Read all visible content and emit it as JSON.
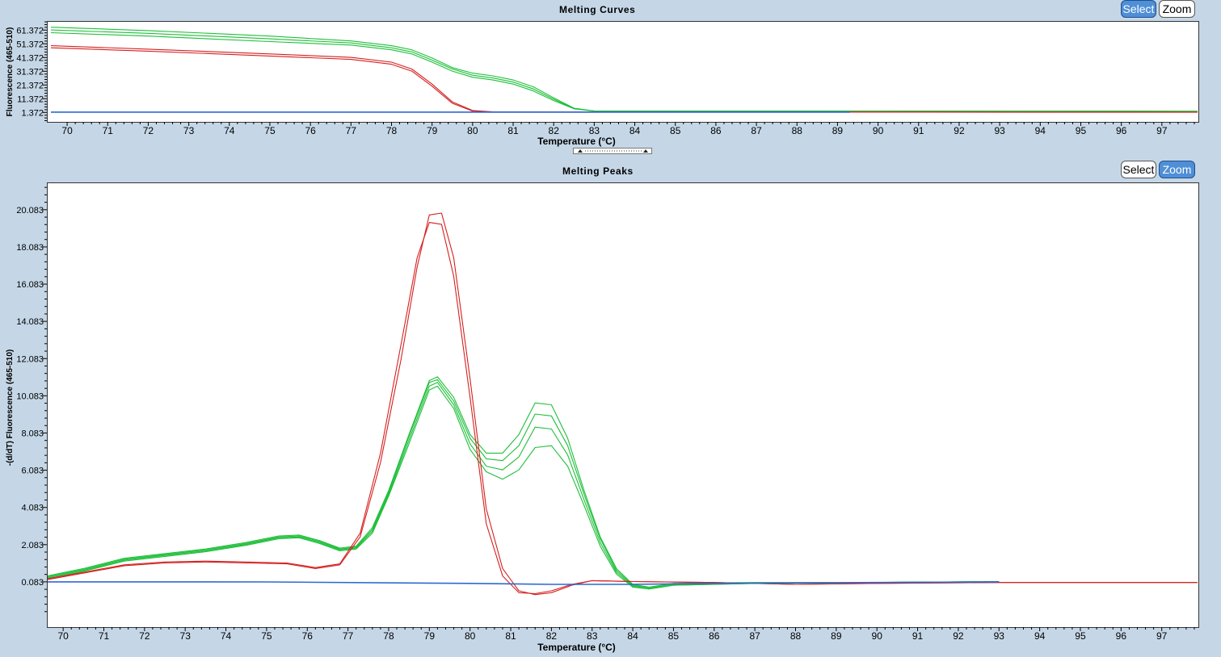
{
  "curves": {
    "title": "Melting Curves",
    "select_label": "Select",
    "zoom_label": "Zoom",
    "active_mode": "select"
  },
  "peaks": {
    "title": "Melting Peaks",
    "select_label": "Select",
    "zoom_label": "Zoom",
    "active_mode": "zoom"
  },
  "colors": {
    "red": "#d42020",
    "green": "#1fbf3a",
    "blue": "#2a6ad0",
    "axis": "#000000"
  },
  "chart_data": [
    {
      "type": "line",
      "title": "Melting Curves",
      "xlabel": "Temperature (°C)",
      "ylabel": "Fluorescence (465-510)",
      "xlim": [
        69.5,
        97.9
      ],
      "ylim": [
        -5.5,
        68
      ],
      "x_ticks": [
        70,
        71,
        72,
        73,
        74,
        75,
        76,
        77,
        78,
        79,
        80,
        81,
        82,
        83,
        84,
        85,
        86,
        87,
        88,
        89,
        90,
        91,
        92,
        93,
        94,
        95,
        96,
        97
      ],
      "y_ticks": [
        1.372,
        11.372,
        21.372,
        31.372,
        41.372,
        51.372,
        61.372
      ],
      "grid": false,
      "series": [
        {
          "color": "green",
          "x": [
            69.6,
            72,
            75,
            77,
            78,
            78.5,
            79,
            79.5,
            80,
            80.5,
            81,
            81.5,
            82,
            82.5,
            83,
            90,
            97.9
          ],
          "y": [
            63.5,
            61,
            57,
            53.5,
            50,
            47,
            41,
            34,
            30,
            28,
            25,
            20,
            12,
            4.5,
            2.4,
            2.4,
            2.2
          ]
        },
        {
          "color": "green",
          "x": [
            69.6,
            72,
            75,
            77,
            78,
            78.5,
            79,
            79.5,
            80,
            80.5,
            81,
            81.5,
            82,
            82.5,
            83,
            90,
            97.9
          ],
          "y": [
            61.5,
            59,
            55,
            52,
            48.5,
            45.5,
            39.5,
            33,
            28.5,
            26.5,
            23.5,
            18.5,
            11,
            4.2,
            2.4,
            2.4,
            2.2
          ]
        },
        {
          "color": "green",
          "x": [
            69.6,
            72,
            75,
            77,
            78,
            78.5,
            79,
            79.5,
            80,
            80.5,
            81,
            81.5,
            82,
            82.5,
            83,
            90,
            97.9
          ],
          "y": [
            59.5,
            57,
            53,
            50.5,
            47,
            44,
            38,
            31.5,
            27,
            25,
            22,
            17,
            10,
            4,
            2.4,
            2.4,
            2.2
          ]
        },
        {
          "color": "red",
          "x": [
            69.6,
            72,
            75,
            77,
            78,
            78.5,
            79,
            79.5,
            80,
            80.5,
            83,
            97.9
          ],
          "y": [
            50,
            47.5,
            44,
            41.5,
            38,
            33,
            22,
            9,
            2.8,
            1.8,
            1.7,
            1.6
          ]
        },
        {
          "color": "red",
          "x": [
            69.6,
            72,
            75,
            77,
            78,
            78.5,
            79,
            79.5,
            80,
            80.5,
            83,
            97.9
          ],
          "y": [
            48.5,
            46,
            42.5,
            40,
            36.5,
            31.5,
            20.5,
            8,
            2.4,
            1.6,
            1.6,
            1.5
          ]
        },
        {
          "color": "blue",
          "x": [
            69.6,
            89.3
          ],
          "y": [
            1.6,
            1.6
          ]
        }
      ]
    },
    {
      "type": "line",
      "title": "Melting Peaks",
      "xlabel": "Temperature (°C)",
      "ylabel": "-(d/dT) Fluorescence (465-510)",
      "xlim": [
        69.6,
        97.9
      ],
      "ylim": [
        -2.35,
        21.55
      ],
      "x_ticks": [
        70,
        71,
        72,
        73,
        74,
        75,
        76,
        77,
        78,
        79,
        80,
        81,
        82,
        83,
        84,
        85,
        86,
        87,
        88,
        89,
        90,
        91,
        92,
        93,
        94,
        95,
        96,
        97
      ],
      "y_ticks": [
        0.083,
        2.083,
        4.083,
        6.083,
        8.083,
        10.083,
        12.083,
        14.083,
        16.083,
        18.083,
        20.083
      ],
      "grid": false,
      "series": [
        {
          "color": "green",
          "x": [
            69.6,
            70.5,
            71.5,
            72.5,
            73.5,
            74.5,
            75.3,
            75.8,
            76.3,
            76.8,
            77.2,
            77.6,
            78,
            78.5,
            79,
            79.2,
            79.6,
            80,
            80.4,
            80.8,
            81.2,
            81.6,
            82,
            82.4,
            82.8,
            83.2,
            83.6,
            84,
            84.4,
            85,
            87,
            90,
            93
          ],
          "y": [
            0.4,
            0.8,
            1.35,
            1.6,
            1.85,
            2.2,
            2.55,
            2.6,
            2.3,
            1.9,
            2.0,
            3.0,
            5.0,
            8.0,
            10.9,
            11.1,
            10.0,
            8.0,
            7.0,
            7.0,
            8.0,
            9.7,
            9.6,
            7.8,
            5.0,
            2.5,
            0.8,
            -0.05,
            -0.2,
            0.0,
            0.05,
            0.05,
            0.1
          ]
        },
        {
          "color": "green",
          "x": [
            69.6,
            70.5,
            71.5,
            72.5,
            73.5,
            74.5,
            75.3,
            75.8,
            76.3,
            76.8,
            77.2,
            77.6,
            78,
            78.5,
            79,
            79.2,
            79.6,
            80,
            80.4,
            80.8,
            81.2,
            81.6,
            82,
            82.4,
            82.8,
            83.2,
            83.6,
            84,
            84.4,
            85,
            87,
            90,
            93
          ],
          "y": [
            0.35,
            0.75,
            1.3,
            1.55,
            1.8,
            2.15,
            2.5,
            2.55,
            2.25,
            1.85,
            1.95,
            2.9,
            4.9,
            7.9,
            10.8,
            10.95,
            9.8,
            7.8,
            6.7,
            6.6,
            7.4,
            9.1,
            9.0,
            7.4,
            4.8,
            2.4,
            0.7,
            -0.1,
            -0.25,
            -0.05,
            0.0,
            0.05,
            0.1
          ]
        },
        {
          "color": "green",
          "x": [
            69.6,
            70.5,
            71.5,
            72.5,
            73.5,
            74.5,
            75.3,
            75.8,
            76.3,
            76.8,
            77.2,
            77.6,
            78,
            78.5,
            79,
            79.2,
            79.6,
            80,
            80.4,
            80.8,
            81.2,
            81.6,
            82,
            82.4,
            82.8,
            83.2,
            83.6,
            84,
            84.4,
            85,
            87,
            90,
            93
          ],
          "y": [
            0.3,
            0.7,
            1.25,
            1.5,
            1.75,
            2.1,
            2.45,
            2.5,
            2.2,
            1.8,
            1.9,
            2.8,
            4.8,
            7.7,
            10.6,
            10.8,
            9.6,
            7.5,
            6.3,
            6.1,
            6.8,
            8.4,
            8.3,
            6.9,
            4.5,
            2.2,
            0.6,
            -0.15,
            -0.3,
            -0.1,
            0.0,
            0.05,
            0.1
          ]
        },
        {
          "color": "green",
          "x": [
            69.6,
            70.5,
            71.5,
            72.5,
            73.5,
            74.5,
            75.3,
            75.8,
            76.3,
            76.8,
            77.2,
            77.6,
            78,
            78.5,
            79,
            79.2,
            79.6,
            80,
            80.4,
            80.8,
            81.2,
            81.6,
            82,
            82.4,
            82.8,
            83.2,
            83.6,
            84,
            84.4,
            85,
            87,
            90,
            93
          ],
          "y": [
            0.25,
            0.65,
            1.2,
            1.45,
            1.7,
            2.05,
            2.4,
            2.45,
            2.15,
            1.75,
            1.85,
            2.7,
            4.7,
            7.5,
            10.4,
            10.6,
            9.4,
            7.2,
            6.0,
            5.6,
            6.1,
            7.3,
            7.4,
            6.3,
            4.2,
            2.0,
            0.5,
            -0.2,
            -0.3,
            -0.1,
            0.0,
            0.05,
            0.1
          ]
        },
        {
          "color": "red",
          "x": [
            69.6,
            70.5,
            71.5,
            72.5,
            73.5,
            74.5,
            75.5,
            76.2,
            76.8,
            77.3,
            77.8,
            78.3,
            78.7,
            79.0,
            79.3,
            79.6,
            80,
            80.4,
            80.8,
            81.2,
            81.6,
            82,
            82.5,
            83,
            84,
            86,
            88,
            90,
            93,
            97.9
          ],
          "y": [
            0.2,
            0.55,
            0.95,
            1.1,
            1.15,
            1.1,
            1.05,
            0.8,
            1.0,
            2.5,
            6.5,
            12.0,
            17.0,
            19.8,
            19.9,
            17.5,
            11.0,
            4.0,
            0.8,
            -0.4,
            -0.6,
            -0.5,
            -0.1,
            0.15,
            0.1,
            0.05,
            -0.05,
            0.0,
            0.05,
            0.05
          ]
        },
        {
          "color": "red",
          "x": [
            69.6,
            70.5,
            71.5,
            72.5,
            73.5,
            74.5,
            75.5,
            76.2,
            76.8,
            77.3,
            77.8,
            78.3,
            78.7,
            79.0,
            79.3,
            79.6,
            80,
            80.4,
            80.8,
            81.2,
            81.6,
            82,
            82.5,
            83,
            84,
            86,
            88,
            90,
            93,
            97.9
          ],
          "y": [
            0.25,
            0.6,
            1.0,
            1.15,
            1.2,
            1.15,
            1.1,
            0.85,
            1.05,
            2.7,
            7.0,
            12.8,
            17.5,
            19.4,
            19.3,
            16.5,
            10.0,
            3.2,
            0.4,
            -0.5,
            -0.55,
            -0.4,
            -0.05,
            0.15,
            0.1,
            0.05,
            -0.05,
            0.0,
            0.05,
            0.05
          ]
        },
        {
          "color": "blue",
          "x": [
            69.6,
            75,
            80,
            82,
            84,
            86,
            90,
            93
          ],
          "y": [
            0.083,
            0.08,
            0.0,
            -0.05,
            -0.05,
            0.0,
            0.05,
            0.083
          ]
        }
      ]
    }
  ]
}
